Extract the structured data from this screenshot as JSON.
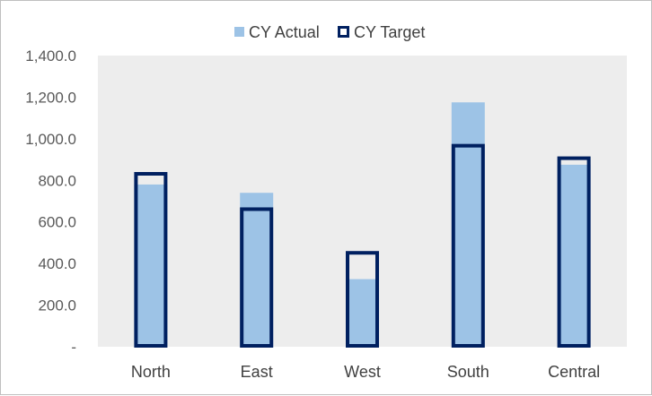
{
  "chart_data": {
    "type": "bar",
    "categories": [
      "North",
      "East",
      "West",
      "South",
      "Central"
    ],
    "series": [
      {
        "name": "CY Actual",
        "values": [
          780,
          740,
          325,
          1175,
          875
        ],
        "color": "#9dc3e6",
        "style": "filled"
      },
      {
        "name": "CY Target",
        "values": [
          840,
          670,
          460,
          975,
          915
        ],
        "color": "#002060",
        "style": "outline"
      }
    ],
    "yticks": [
      "-",
      "200.0",
      "400.0",
      "600.0",
      "800.0",
      "1,000.0",
      "1,200.0",
      "1,400.0"
    ],
    "ylim": [
      0,
      1400
    ],
    "legend": "top-center",
    "plot_background": "#ededed",
    "grid": false
  }
}
